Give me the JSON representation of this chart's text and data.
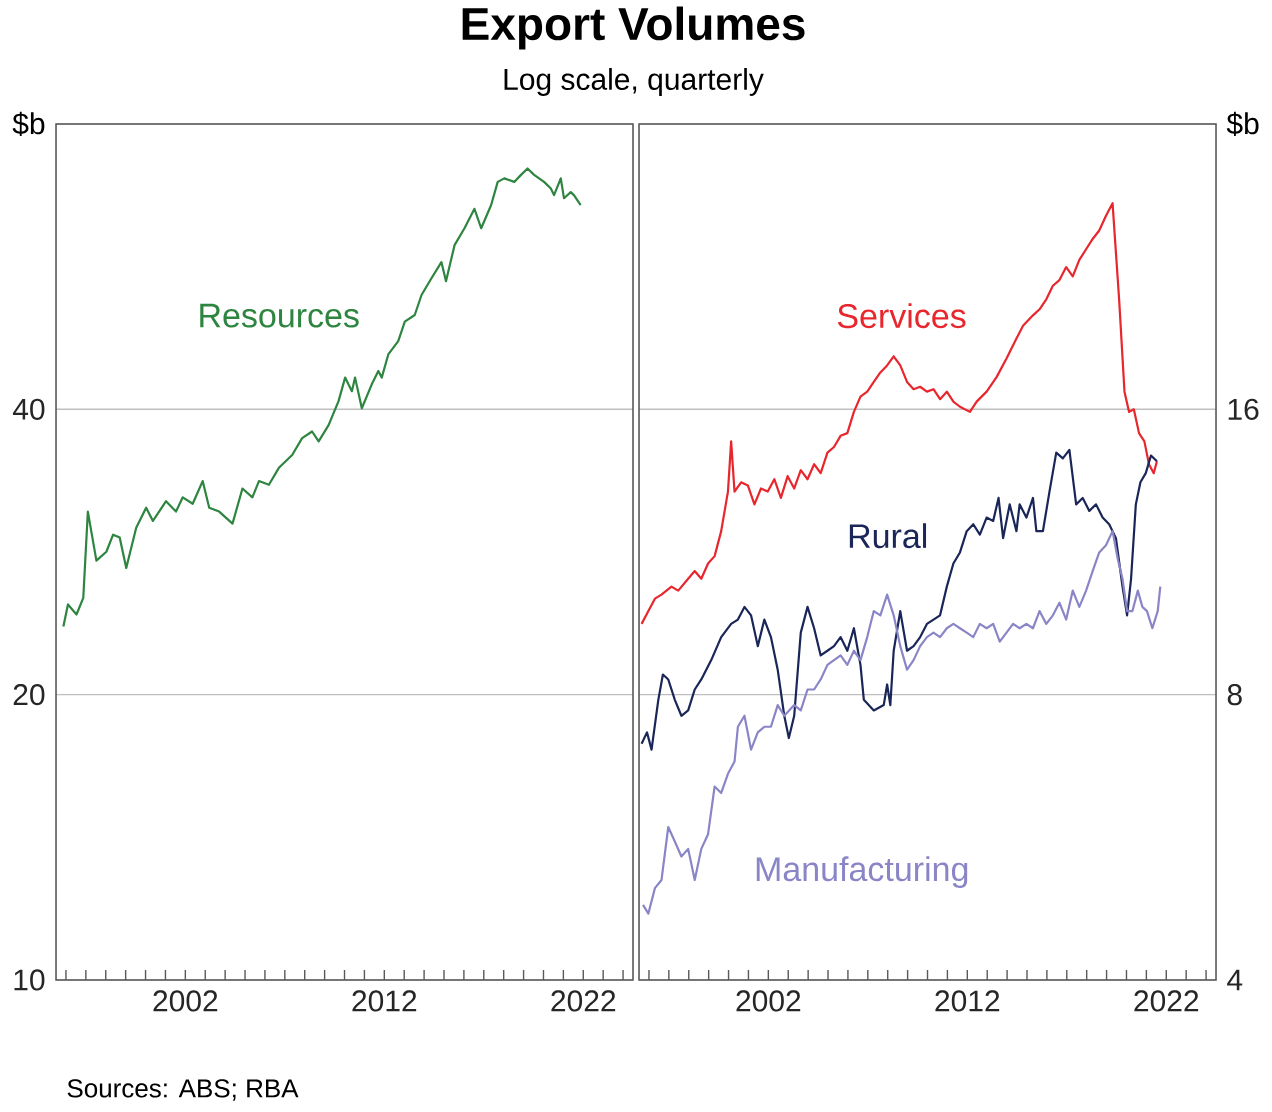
{
  "chart_data": [
    {
      "type": "line",
      "title": "Export Volumes",
      "subtitle": "Log scale, quarterly",
      "annotations": [
        "Sources: ABS; RBA"
      ],
      "ylabel": "$b",
      "log": true,
      "grid": "y",
      "xlim": [
        1995.5,
        2024.5
      ],
      "ylim": [
        10,
        80
      ],
      "yticks": [
        10,
        20,
        40,
        {
          "value": 80,
          "label": null
        }
      ],
      "xticks": [
        {
          "value": 1996,
          "label": null
        },
        {
          "value": 1997,
          "label": null
        },
        {
          "value": 1998,
          "label": null
        },
        {
          "value": 1999,
          "label": null
        },
        {
          "value": 2000,
          "label": null
        },
        {
          "value": 2001,
          "label": null
        },
        2002,
        {
          "value": 2003,
          "label": null
        },
        {
          "value": 2004,
          "label": null
        },
        {
          "value": 2005,
          "label": null
        },
        {
          "value": 2006,
          "label": null
        },
        {
          "value": 2007,
          "label": null
        },
        {
          "value": 2008,
          "label": null
        },
        {
          "value": 2009,
          "label": null
        },
        {
          "value": 2010,
          "label": null
        },
        {
          "value": 2011,
          "label": null
        },
        2012,
        {
          "value": 2013,
          "label": null
        },
        {
          "value": 2014,
          "label": null
        },
        {
          "value": 2015,
          "label": null
        },
        {
          "value": 2016,
          "label": null
        },
        {
          "value": 2017,
          "label": null
        },
        {
          "value": 2018,
          "label": null
        },
        {
          "value": 2019,
          "label": null
        },
        {
          "value": 2020,
          "label": null
        },
        {
          "value": 2021,
          "label": null
        },
        2022,
        {
          "value": 2023,
          "label": null
        },
        {
          "value": 2024,
          "label": null
        }
      ],
      "series": [
        {
          "name": "Resources",
          "color": "#2e8540",
          "x": [
            1995.87,
            1996.1,
            1996.53,
            1996.87,
            1997.1,
            1997.53,
            1998.03,
            1998.37,
            1998.7,
            1999.03,
            1999.53,
            2000.03,
            2000.37,
            2001.03,
            2001.53,
            2001.87,
            2002.37,
            2002.87,
            2003.2,
            2003.7,
            2004.37,
            2004.87,
            2005.37,
            2005.7,
            2006.2,
            2006.7,
            2007.37,
            2007.87,
            2008.37,
            2008.7,
            2009.2,
            2009.7,
            2010.03,
            2010.37,
            2010.53,
            2010.87,
            2011.37,
            2011.7,
            2011.87,
            2012.2,
            2012.7,
            2013.03,
            2013.53,
            2013.87,
            2014.37,
            2014.87,
            2015.1,
            2015.53,
            2016.03,
            2016.53,
            2016.87,
            2017.37,
            2017.7,
            2018.03,
            2018.53,
            2018.87,
            2019.2,
            2019.53,
            2020.03,
            2020.37,
            2020.53,
            2020.87,
            2021.03,
            2021.37,
            2021.53,
            2021.87
          ],
          "values": [
            23.6,
            24.9,
            24.3,
            25.3,
            31.2,
            27.7,
            28.3,
            29.5,
            29.3,
            27.2,
            30.0,
            31.5,
            30.5,
            32.0,
            31.2,
            32.3,
            31.8,
            33.6,
            31.5,
            31.2,
            30.3,
            33.0,
            32.3,
            33.6,
            33.3,
            34.7,
            35.8,
            37.3,
            37.9,
            37.0,
            38.5,
            40.8,
            43.2,
            41.8,
            43.2,
            40.1,
            42.5,
            43.9,
            43.2,
            45.7,
            47.2,
            49.5,
            50.3,
            52.8,
            55.0,
            57.2,
            54.6,
            59.6,
            62.1,
            65.1,
            62.1,
            65.7,
            69.5,
            70.1,
            69.5,
            70.7,
            71.8,
            70.7,
            69.5,
            68.4,
            67.3,
            70.1,
            66.8,
            67.8,
            67.3,
            65.7
          ]
        }
      ]
    },
    {
      "type": "line",
      "ylabel": "$b",
      "log": true,
      "grid": "y",
      "xlim": [
        1995.5,
        2024.5
      ],
      "ylim": [
        4,
        32
      ],
      "yticks": [
        4,
        8,
        16,
        {
          "value": 32,
          "label": null
        }
      ],
      "xticks": [
        {
          "value": 1996,
          "label": null
        },
        {
          "value": 1997,
          "label": null
        },
        {
          "value": 1998,
          "label": null
        },
        {
          "value": 1999,
          "label": null
        },
        {
          "value": 2000,
          "label": null
        },
        {
          "value": 2001,
          "label": null
        },
        2002,
        {
          "value": 2003,
          "label": null
        },
        {
          "value": 2004,
          "label": null
        },
        {
          "value": 2005,
          "label": null
        },
        {
          "value": 2006,
          "label": null
        },
        {
          "value": 2007,
          "label": null
        },
        {
          "value": 2008,
          "label": null
        },
        {
          "value": 2009,
          "label": null
        },
        {
          "value": 2010,
          "label": null
        },
        {
          "value": 2011,
          "label": null
        },
        2012,
        {
          "value": 2013,
          "label": null
        },
        {
          "value": 2014,
          "label": null
        },
        {
          "value": 2015,
          "label": null
        },
        {
          "value": 2016,
          "label": null
        },
        {
          "value": 2017,
          "label": null
        },
        {
          "value": 2018,
          "label": null
        },
        {
          "value": 2019,
          "label": null
        },
        {
          "value": 2020,
          "label": null
        },
        {
          "value": 2021,
          "label": null
        },
        2022,
        {
          "value": 2023,
          "label": null
        },
        {
          "value": 2024,
          "label": null
        }
      ],
      "series": [
        {
          "name": "Services",
          "color": "#e8262d",
          "x": [
            1995.63,
            1995.97,
            1996.3,
            1996.63,
            1997.13,
            1997.47,
            1997.97,
            1998.3,
            1998.63,
            1998.97,
            1999.3,
            1999.63,
            1999.97,
            2000.13,
            2000.3,
            2000.63,
            2000.97,
            2001.3,
            2001.63,
            2001.97,
            2002.3,
            2002.63,
            2002.97,
            2003.3,
            2003.63,
            2003.97,
            2004.3,
            2004.63,
            2004.97,
            2005.3,
            2005.63,
            2005.97,
            2006.3,
            2006.63,
            2006.97,
            2007.3,
            2007.63,
            2007.97,
            2008.3,
            2008.63,
            2008.97,
            2009.3,
            2009.63,
            2009.97,
            2010.3,
            2010.63,
            2010.97,
            2011.3,
            2011.63,
            2012.13,
            2012.47,
            2012.97,
            2013.47,
            2013.97,
            2014.47,
            2014.8,
            2015.3,
            2015.63,
            2015.97,
            2016.3,
            2016.63,
            2016.97,
            2017.3,
            2017.63,
            2017.97,
            2018.3,
            2018.63,
            2018.97,
            2019.3,
            2019.63,
            2019.9,
            2020.13,
            2020.37,
            2020.63,
            2020.9,
            2021.13,
            2021.37,
            2021.53
          ],
          "values": [
            9.5,
            9.8,
            10.1,
            10.2,
            10.4,
            10.3,
            10.6,
            10.8,
            10.6,
            11.0,
            11.2,
            11.9,
            13.1,
            14.8,
            13.1,
            13.4,
            13.3,
            12.7,
            13.2,
            13.1,
            13.5,
            12.9,
            13.6,
            13.2,
            13.8,
            13.5,
            14.0,
            13.7,
            14.4,
            14.6,
            15.0,
            15.1,
            15.9,
            16.5,
            16.7,
            17.1,
            17.5,
            17.8,
            18.2,
            17.8,
            17.1,
            16.8,
            16.9,
            16.7,
            16.8,
            16.4,
            16.7,
            16.3,
            16.1,
            15.9,
            16.3,
            16.7,
            17.3,
            18.1,
            19.0,
            19.6,
            20.1,
            20.4,
            20.9,
            21.6,
            21.9,
            22.6,
            22.1,
            23.0,
            23.6,
            24.2,
            24.7,
            25.6,
            26.4,
            20.9,
            16.7,
            15.9,
            16.0,
            15.1,
            14.8,
            14.0,
            13.7,
            14.1
          ]
        },
        {
          "name": "Rural",
          "color": "#1a2657",
          "x": [
            1995.63,
            1995.9,
            1996.13,
            1996.47,
            1996.7,
            1996.97,
            1997.3,
            1997.63,
            1997.97,
            1998.3,
            1998.63,
            1999.13,
            1999.63,
            2000.13,
            2000.47,
            2000.8,
            2001.13,
            2001.47,
            2001.8,
            2002.13,
            2002.47,
            2002.8,
            2003.03,
            2003.3,
            2003.63,
            2003.97,
            2004.3,
            2004.63,
            2004.97,
            2005.3,
            2005.63,
            2005.97,
            2006.3,
            2006.63,
            2006.8,
            2007.3,
            2007.8,
            2007.97,
            2008.13,
            2008.3,
            2008.63,
            2008.97,
            2009.3,
            2009.63,
            2009.97,
            2010.3,
            2010.63,
            2010.97,
            2011.3,
            2011.63,
            2011.97,
            2012.3,
            2012.63,
            2012.97,
            2013.3,
            2013.57,
            2013.8,
            2014.13,
            2014.47,
            2014.63,
            2014.97,
            2015.3,
            2015.47,
            2015.8,
            2016.13,
            2016.47,
            2016.8,
            2017.13,
            2017.47,
            2017.8,
            2018.13,
            2018.47,
            2018.8,
            2019.13,
            2019.47,
            2019.8,
            2020.03,
            2020.23,
            2020.47,
            2020.7,
            2020.97,
            2021.23,
            2021.53
          ],
          "values": [
            7.1,
            7.3,
            7.0,
            7.9,
            8.4,
            8.3,
            7.9,
            7.6,
            7.7,
            8.1,
            8.3,
            8.7,
            9.2,
            9.5,
            9.6,
            9.9,
            9.7,
            9.0,
            9.6,
            9.2,
            8.5,
            7.6,
            7.2,
            7.6,
            9.3,
            9.9,
            9.4,
            8.8,
            8.9,
            9.0,
            9.2,
            8.9,
            9.4,
            8.6,
            7.9,
            7.7,
            7.8,
            8.2,
            7.8,
            8.9,
            9.8,
            8.9,
            9.0,
            9.2,
            9.5,
            9.6,
            9.7,
            10.4,
            11.0,
            11.3,
            11.9,
            12.1,
            11.8,
            12.3,
            12.2,
            12.9,
            11.7,
            12.7,
            11.9,
            12.7,
            12.3,
            12.9,
            11.9,
            11.9,
            13.1,
            14.4,
            14.2,
            14.5,
            12.7,
            12.9,
            12.5,
            12.7,
            12.3,
            12.1,
            11.7,
            10.4,
            9.7,
            10.6,
            12.7,
            13.4,
            13.7,
            14.3,
            14.1
          ]
        },
        {
          "name": "Manufacturing",
          "color": "#8a85c6",
          "x": [
            1995.7,
            1995.97,
            1996.3,
            1996.63,
            1996.97,
            1997.3,
            1997.63,
            1997.97,
            1998.3,
            1998.63,
            1998.97,
            1999.3,
            1999.63,
            1999.97,
            2000.3,
            2000.47,
            2000.8,
            2001.13,
            2001.47,
            2001.8,
            2002.13,
            2002.47,
            2002.8,
            2003.3,
            2003.63,
            2003.97,
            2004.3,
            2004.63,
            2004.97,
            2005.3,
            2005.63,
            2005.97,
            2006.3,
            2006.63,
            2006.97,
            2007.3,
            2007.63,
            2007.97,
            2008.3,
            2008.63,
            2008.97,
            2009.3,
            2009.63,
            2009.97,
            2010.3,
            2010.63,
            2010.97,
            2011.3,
            2011.63,
            2011.97,
            2012.3,
            2012.63,
            2012.97,
            2013.3,
            2013.63,
            2013.97,
            2014.3,
            2014.63,
            2014.97,
            2015.3,
            2015.63,
            2015.97,
            2016.3,
            2016.63,
            2016.97,
            2017.3,
            2017.63,
            2017.97,
            2018.3,
            2018.63,
            2018.97,
            2019.3,
            2019.57,
            2019.8,
            2020.03,
            2020.3,
            2020.57,
            2020.8,
            2021.03,
            2021.3,
            2021.57,
            2021.7
          ],
          "values": [
            4.8,
            4.7,
            5.0,
            5.1,
            5.8,
            5.6,
            5.4,
            5.5,
            5.1,
            5.5,
            5.7,
            6.4,
            6.3,
            6.6,
            6.8,
            7.4,
            7.6,
            7.0,
            7.3,
            7.4,
            7.4,
            7.8,
            7.6,
            7.8,
            7.7,
            8.1,
            8.1,
            8.3,
            8.6,
            8.7,
            8.8,
            8.6,
            8.9,
            8.7,
            9.2,
            9.8,
            9.7,
            10.2,
            9.7,
            9.0,
            8.5,
            8.7,
            9.0,
            9.2,
            9.3,
            9.2,
            9.4,
            9.5,
            9.4,
            9.3,
            9.2,
            9.5,
            9.4,
            9.5,
            9.1,
            9.3,
            9.5,
            9.4,
            9.5,
            9.4,
            9.8,
            9.5,
            9.7,
            10.0,
            9.6,
            10.3,
            9.9,
            10.3,
            10.8,
            11.3,
            11.5,
            11.9,
            11.1,
            10.6,
            9.8,
            9.8,
            10.3,
            9.9,
            9.8,
            9.4,
            9.8,
            10.4
          ]
        }
      ]
    }
  ]
}
